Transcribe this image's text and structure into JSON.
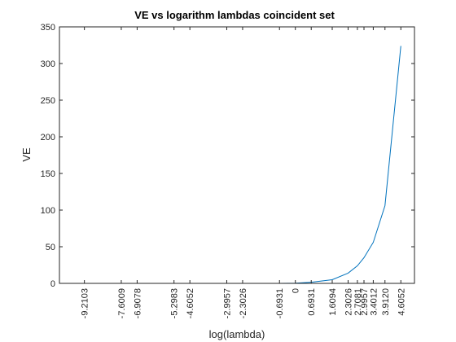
{
  "chart_data": {
    "type": "line",
    "title": "VE vs logarithm lambdas coincident set",
    "xlabel": "log(lambda)",
    "ylabel": "VE",
    "xlim": [
      -10.3,
      5.2
    ],
    "ylim": [
      0,
      350
    ],
    "x_ticks": [
      -9.2103,
      -7.6009,
      -6.9078,
      -5.2983,
      -4.6052,
      -2.9957,
      -2.3026,
      -0.6931,
      0,
      0.6931,
      1.6094,
      2.3026,
      2.7081,
      2.9957,
      3.4012,
      3.912,
      4.6052
    ],
    "x_tick_labels": [
      "-9.2103",
      "-7.6009",
      "-6.9078",
      "-5.2983",
      "-4.6052",
      "-2.9957",
      "-2.3026",
      "-0.6931",
      "0",
      "0.6931",
      "1.6094",
      "2.3026",
      "2.7081",
      "2.9957",
      "3.4012",
      "3.9120",
      "4.6052"
    ],
    "y_ticks": [
      0,
      50,
      100,
      150,
      200,
      250,
      300,
      350
    ],
    "y_tick_labels": [
      "0",
      "50",
      "100",
      "150",
      "200",
      "250",
      "300",
      "350"
    ],
    "series": [
      {
        "color": "#0072bd",
        "x": [
          -9.2103,
          -7.6009,
          -6.9078,
          -5.2983,
          -4.6052,
          -2.9957,
          -2.3026,
          -0.6931,
          0,
          0.6931,
          1.6094,
          2.3026,
          2.7081,
          2.9957,
          3.4012,
          3.912,
          4.6052
        ],
        "y": [
          0,
          0,
          0,
          0,
          0,
          0,
          0,
          0,
          0.3,
          1.5,
          5,
          14,
          24,
          35,
          56,
          106,
          324
        ]
      }
    ]
  }
}
